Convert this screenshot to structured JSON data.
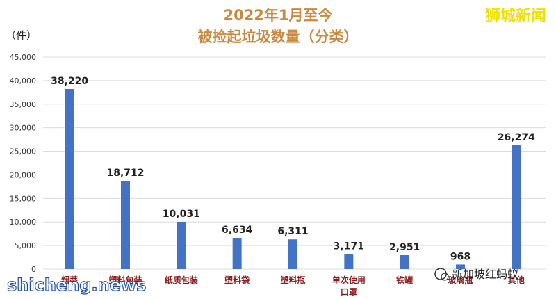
{
  "chart_data": {
    "type": "bar",
    "title": "2022年1月至今",
    "subtitle": "被捡起垃圾数量（分类）",
    "ylabel": "（件）",
    "ylim": [
      0,
      45000
    ],
    "yticks": [
      0,
      5000,
      10000,
      15000,
      20000,
      25000,
      30000,
      35000,
      40000,
      45000
    ],
    "ytick_labels": [
      "0",
      "5,000",
      "10,000",
      "15,000",
      "20,000",
      "25,000",
      "30,000",
      "35,000",
      "40,000",
      "45,000"
    ],
    "grid": true,
    "bar_color": "#4472c4",
    "categories": [
      "烟蒂",
      "塑料包装",
      "纸质包装",
      "塑料袋",
      "塑料瓶",
      "单次使用口罩",
      "铁罐",
      "玻璃瓶",
      "其他"
    ],
    "category_lines": [
      [
        "烟蒂"
      ],
      [
        "塑料包装"
      ],
      [
        "纸质包装"
      ],
      [
        "塑料袋"
      ],
      [
        "塑料瓶"
      ],
      [
        "单次使用",
        "口罩"
      ],
      [
        "铁罐"
      ],
      [
        "玻璃瓶"
      ],
      [
        "其他"
      ]
    ],
    "values": [
      38220,
      18712,
      10031,
      6634,
      6311,
      3171,
      2951,
      968,
      26274
    ],
    "value_labels": [
      "38,220",
      "18,712",
      "10,031",
      "6,634",
      "6,311",
      "3,171",
      "2,951",
      "968",
      "26,274"
    ]
  },
  "watermarks": {
    "top_right": "狮城新闻",
    "bottom_left": "shicheng.news",
    "bottom_right": "新加坡红蚂蚁"
  }
}
